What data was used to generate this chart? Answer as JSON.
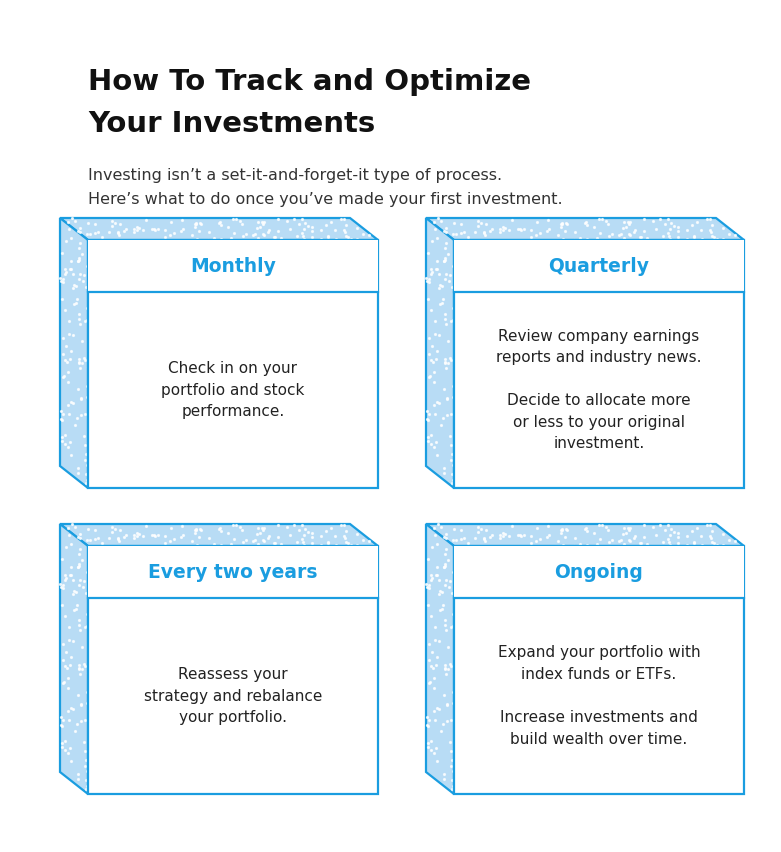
{
  "title_line1": "How To Track and Optimize",
  "title_line2": "Your Investments",
  "subtitle_line1": "Investing isn’t a set-it-and-forget-it type of process.",
  "subtitle_line2": "Here’s what to do once you’ve made your first investment.",
  "background_color": "#ffffff",
  "title_color": "#111111",
  "subtitle_color": "#333333",
  "header_color": "#1a9de0",
  "body_color": "#222222",
  "box_border_color": "#1a9de0",
  "side_bg_color": "#b8dcf5",
  "boxes": [
    {
      "header": "Monthly",
      "body": "Check in on your\nportfolio and stock\nperformance."
    },
    {
      "header": "Quarterly",
      "body": "Review company earnings\nreports and industry news.\n\nDecide to allocate more\nor less to your original\ninvestment."
    },
    {
      "header": "Every two years",
      "body": "Reassess your\nstrategy and rebalance\nyour portfolio."
    },
    {
      "header": "Ongoing",
      "body": "Expand your portfolio with\nindex funds or ETFs.\n\nIncrease investments and\nbuild wealth over time."
    }
  ]
}
